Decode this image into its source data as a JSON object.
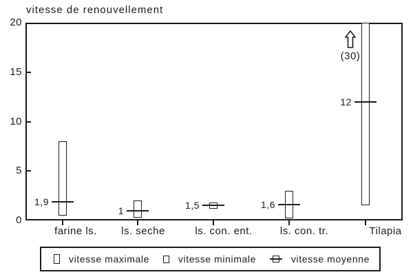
{
  "chart_data": {
    "type": "bar",
    "subtype": "min-max-range-bars-with-mean",
    "title": "vitesse de renouvellement",
    "categories": [
      "farine ls.",
      "ls. seche",
      "ls. con. ent.",
      "ls. con. tr.",
      "Tilapia"
    ],
    "series": [
      {
        "name": "vitesse maximale",
        "values": [
          8,
          2,
          1.8,
          3,
          30
        ]
      },
      {
        "name": "vitesse minimale",
        "values": [
          0.5,
          0.3,
          1.2,
          0.2,
          1.5
        ]
      },
      {
        "name": "vitesse moyenne",
        "values": [
          1.9,
          1,
          1.5,
          1.6,
          12
        ]
      }
    ],
    "mean_labels": [
      "1,9",
      "1",
      "1,5",
      "1,6",
      "12"
    ],
    "ylim": [
      0,
      20
    ],
    "yticks": [
      0,
      5,
      10,
      15,
      20
    ],
    "xlabel": "",
    "ylabel": "vitesse de renouvellement",
    "grid": false,
    "legend_position": "bottom",
    "off_scale_note": {
      "category": "Tilapia",
      "text": "(30)",
      "meaning": "maximum beyond axis top"
    }
  },
  "colors": {
    "ink": "#1a1a1a",
    "background": "#ffffff",
    "bar_fill": "#ffffff"
  }
}
